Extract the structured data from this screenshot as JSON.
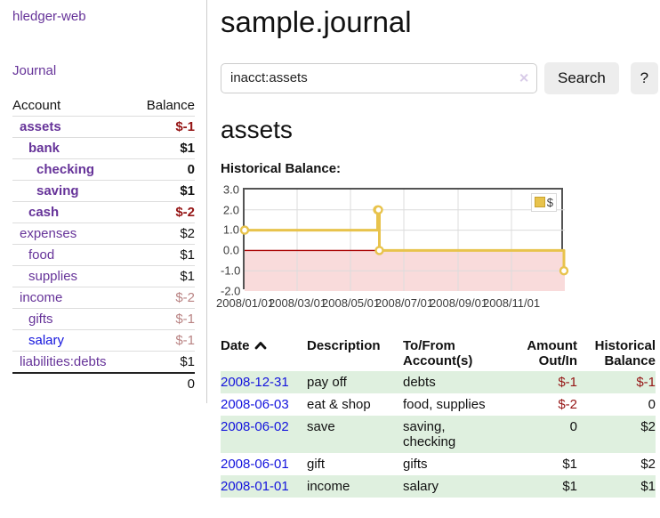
{
  "colors": {
    "purple-link": "#663399",
    "blue-link": "#1414dd",
    "negative": "#951515",
    "negative-soft": "#b98383",
    "row-shade-green": "#dff0df",
    "chart-line-gold": "#e8c34c",
    "chart-fill-pink": "#f9dbdb",
    "zero-line-red": "#aa0000",
    "chart-border": "#545454",
    "grid-line": "#dcdcdc",
    "button-bg": "#ededed",
    "input-border": "#cccccc",
    "clear-icon-color": "#d8cbe8",
    "divider": "#cccccc",
    "table-rule": "#dddddd",
    "total-rule": "#222222"
  },
  "sidebar": {
    "app_title": "hledger-web",
    "journal_link": "Journal",
    "table": {
      "headers": {
        "account": "Account",
        "balance": "Balance"
      },
      "rows": [
        {
          "name": "assets",
          "balance": "$-1",
          "depth": 1,
          "bold": true,
          "neg": "strong"
        },
        {
          "name": "bank",
          "balance": "$1",
          "depth": 2,
          "bold": true
        },
        {
          "name": "checking",
          "balance": "0",
          "depth": 3,
          "bold": true
        },
        {
          "name": "saving",
          "balance": "$1",
          "depth": 3,
          "bold": true
        },
        {
          "name": "cash",
          "balance": "$-2",
          "depth": 2,
          "bold": true,
          "neg": "strong"
        },
        {
          "name": "expenses",
          "balance": "$2",
          "depth": 1
        },
        {
          "name": "food",
          "balance": "$1",
          "depth": 2
        },
        {
          "name": "supplies",
          "balance": "$1",
          "depth": 2
        },
        {
          "name": "income",
          "balance": "$-2",
          "depth": 1,
          "neg": "soft"
        },
        {
          "name": "gifts",
          "balance": "$-1",
          "depth": 2,
          "neg": "soft"
        },
        {
          "name": "salary",
          "balance": "$-1",
          "depth": 2,
          "neg": "soft",
          "link": "blue"
        },
        {
          "name": "liabilities:debts",
          "balance": "$1",
          "depth": 1
        }
      ],
      "total": "0"
    }
  },
  "main": {
    "title": "sample.journal",
    "search": {
      "value": "inacct:assets",
      "clear_icon": "✕",
      "search_button": "Search",
      "help_button": "?"
    },
    "account_heading": "assets",
    "chart_title": "Historical Balance:"
  },
  "chart_data": {
    "type": "line",
    "step": true,
    "title": "Historical Balance",
    "xlim": [
      "2008-01-01",
      "2009-01-01"
    ],
    "ylim": [
      -2.0,
      3.0
    ],
    "y_ticks": [
      "3.0",
      "2.0",
      "1.0",
      "0.0",
      "-1.0",
      "-2.0"
    ],
    "x_ticks": [
      "2008/01/01",
      "2008/03/01",
      "2008/05/01",
      "2008/07/01",
      "2008/09/01",
      "2008/11/01"
    ],
    "grid": true,
    "legend": {
      "label": "$",
      "position": "top-right"
    },
    "series": [
      {
        "name": "$",
        "points": [
          [
            "2008-01-01",
            1
          ],
          [
            "2008-06-01",
            2
          ],
          [
            "2008-06-02",
            2
          ],
          [
            "2008-06-03",
            0
          ],
          [
            "2008-12-31",
            -1
          ]
        ]
      }
    ],
    "negative_region": {
      "below": 0,
      "color": "#f9dbdb"
    },
    "zero_line_color": "#aa0000"
  },
  "register": {
    "headers": [
      {
        "label": "Date",
        "col": "date",
        "sortable": true
      },
      {
        "label": "Description",
        "col": "desc"
      },
      {
        "label": "To/From Account(s)",
        "col": "accts"
      },
      {
        "label": "Amount Out/In",
        "col": "amt"
      },
      {
        "label": "Historical Balance",
        "col": "bal"
      }
    ],
    "rows": [
      {
        "date": "2008-12-31",
        "description": "pay off",
        "accounts": "debts",
        "amount": "$-1",
        "balance": "$-1",
        "amount_neg": true,
        "balance_neg": true,
        "shaded": true
      },
      {
        "date": "2008-06-03",
        "description": "eat & shop",
        "accounts": "food, supplies",
        "amount": "$-2",
        "balance": "0",
        "amount_neg": true,
        "balance_neg": false,
        "shaded": false
      },
      {
        "date": "2008-06-02",
        "description": "save",
        "accounts": "saving, checking",
        "amount": "0",
        "balance": "$2",
        "amount_neg": false,
        "balance_neg": false,
        "shaded": true
      },
      {
        "date": "2008-06-01",
        "description": "gift",
        "accounts": "gifts",
        "amount": "$1",
        "balance": "$2",
        "amount_neg": false,
        "balance_neg": false,
        "shaded": false
      },
      {
        "date": "2008-01-01",
        "description": "income",
        "accounts": "salary",
        "amount": "$1",
        "balance": "$1",
        "amount_neg": false,
        "balance_neg": false,
        "shaded": true
      }
    ]
  }
}
